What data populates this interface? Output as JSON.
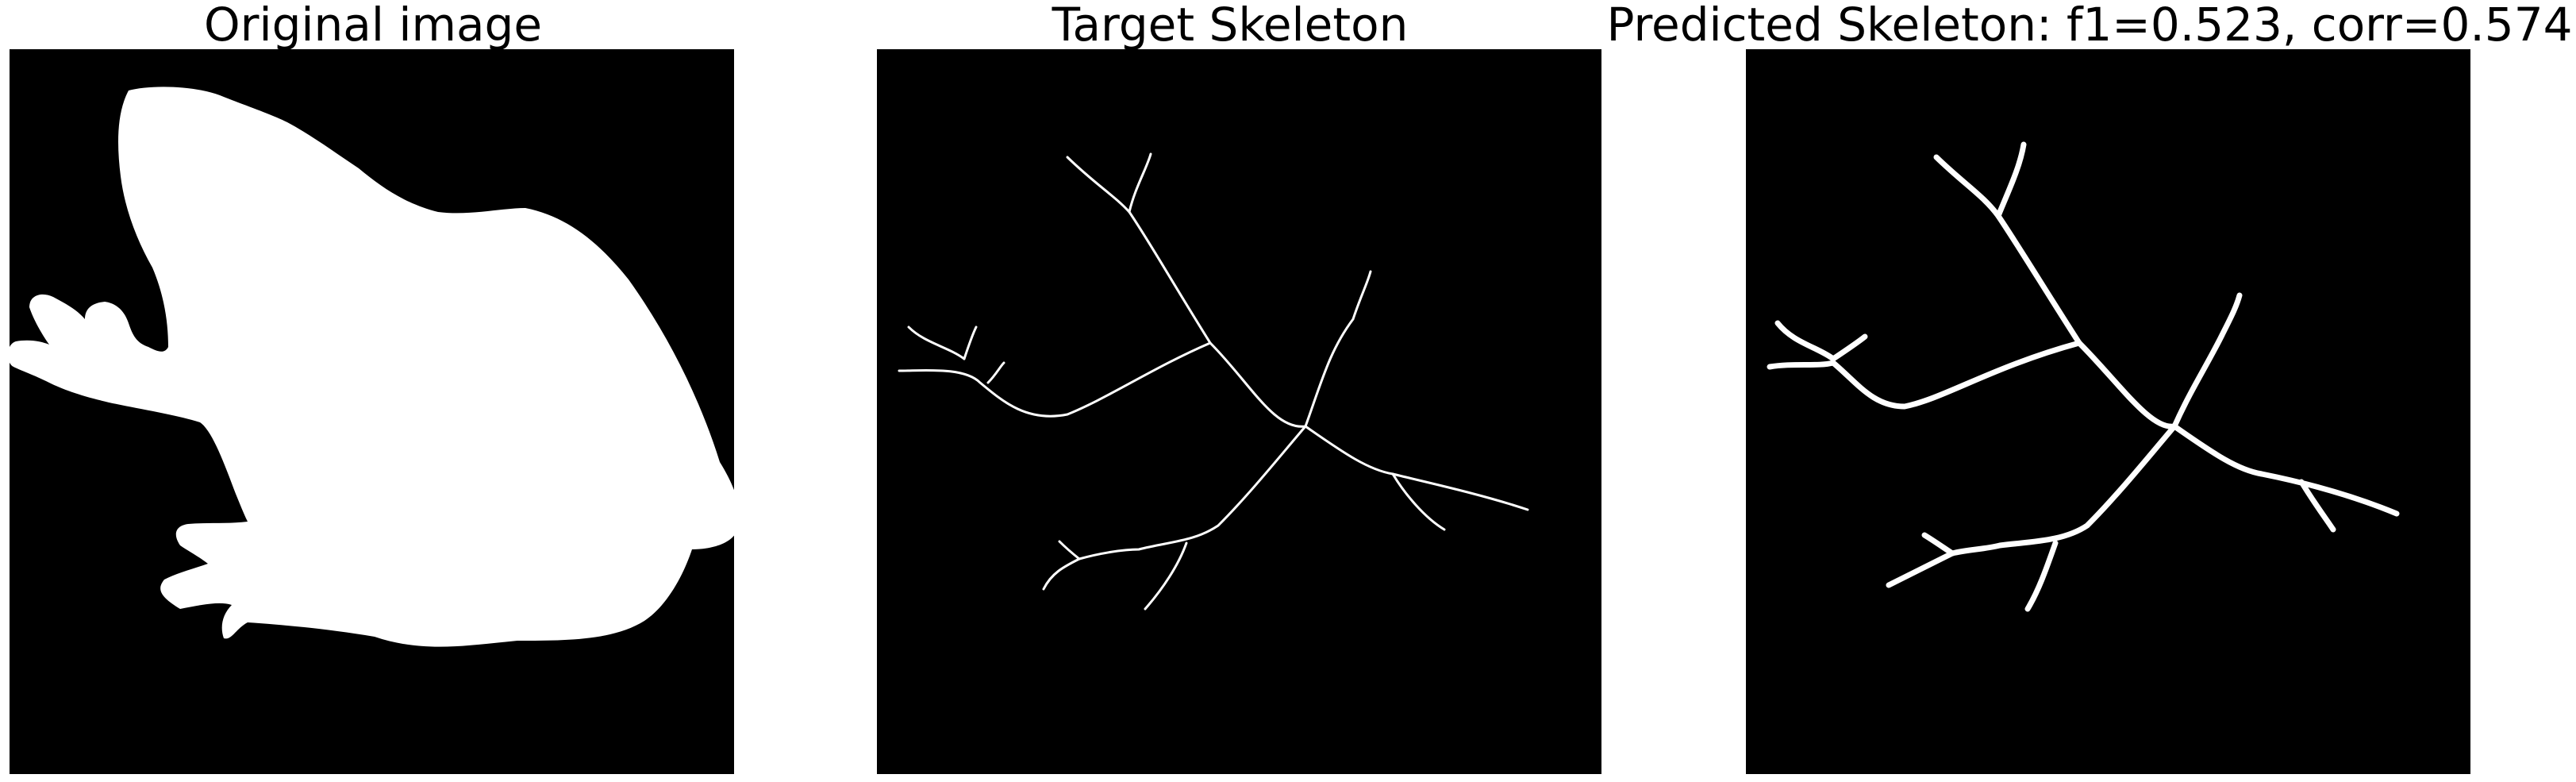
{
  "panels": [
    {
      "title": "Original image"
    },
    {
      "title": "Target Skeleton"
    },
    {
      "title": "Predicted Skeleton: f1=0.523, corr=0.574"
    }
  ],
  "colors": {
    "background": "#000000",
    "foreground": "#ffffff"
  }
}
